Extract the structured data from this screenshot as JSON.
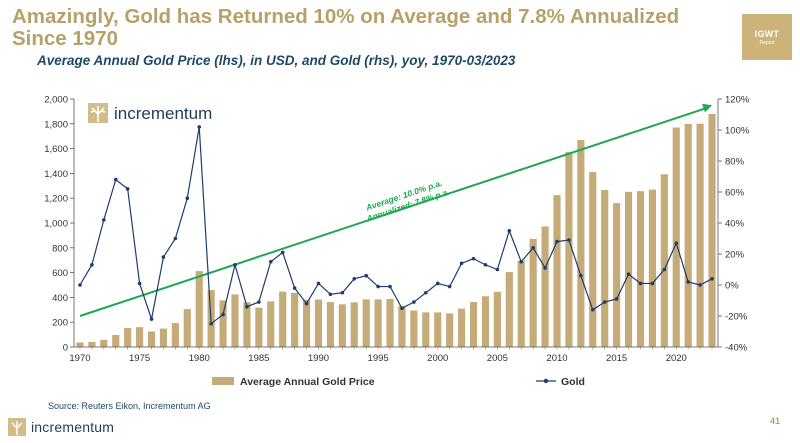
{
  "page": {
    "title": "Amazingly, Gold has Returned 10% on Average and 7.8% Annualized Since 1970",
    "subtitle": "Average Annual Gold Price (lhs), in USD, and Gold (rhs), yoy, 1970-03/2023",
    "badge_line1": "IGWT",
    "badge_line2": "Report",
    "chart_logo_text": "incrementum",
    "source": "Source: Reuters Eikon, Incrementum AG",
    "footer_logo_text": "incrementum",
    "page_number": "41",
    "annotation_line1": "Average: 10.0% p.a.",
    "annotation_line2": "Annualized: 7.8% p.a."
  },
  "colors": {
    "gold": "#c4ab78",
    "line": "#1f3d6e",
    "trend": "#1ea850",
    "title": "#b8a06a",
    "navy": "#1f4a66"
  },
  "chart_data": {
    "type": "bar+line",
    "title": "Average Annual Gold Price (lhs), in USD, and Gold (rhs), yoy, 1970-03/2023",
    "x": [
      1970,
      1971,
      1972,
      1973,
      1974,
      1975,
      1976,
      1977,
      1978,
      1979,
      1980,
      1981,
      1982,
      1983,
      1984,
      1985,
      1986,
      1987,
      1988,
      1989,
      1990,
      1991,
      1992,
      1993,
      1994,
      1995,
      1996,
      1997,
      1998,
      1999,
      2000,
      2001,
      2002,
      2003,
      2004,
      2005,
      2006,
      2007,
      2008,
      2009,
      2010,
      2011,
      2012,
      2013,
      2014,
      2015,
      2016,
      2017,
      2018,
      2019,
      2020,
      2021,
      2022,
      2023
    ],
    "x_tick_labels": [
      "1970",
      "1975",
      "1980",
      "1985",
      "1990",
      "1995",
      "2000",
      "2005",
      "2010",
      "2015",
      "2020"
    ],
    "series": [
      {
        "name": "Average Annual Gold Price",
        "type": "bar",
        "axis": "left",
        "values": [
          36,
          41,
          58,
          97,
          154,
          160,
          125,
          148,
          193,
          306,
          612,
          460,
          376,
          424,
          361,
          317,
          368,
          447,
          437,
          381,
          383,
          362,
          344,
          360,
          384,
          384,
          388,
          331,
          294,
          279,
          279,
          271,
          310,
          363,
          409,
          445,
          604,
          696,
          872,
          972,
          1225,
          1572,
          1669,
          1411,
          1266,
          1160,
          1251,
          1257,
          1269,
          1393,
          1770,
          1799,
          1801,
          1880
        ]
      },
      {
        "name": "Gold",
        "type": "line",
        "axis": "right",
        "values": [
          0,
          13,
          42,
          68,
          62,
          1,
          -22,
          18,
          30,
          56,
          102,
          -25,
          -19,
          13,
          -14,
          -11,
          15,
          21,
          -2,
          -12,
          1,
          -6,
          -5,
          4,
          6,
          -1,
          -1,
          -15,
          -11,
          -5,
          1,
          -1,
          14,
          17,
          13,
          10,
          35,
          15,
          24,
          11,
          28,
          29,
          6,
          -16,
          -11,
          -9,
          7,
          1,
          1,
          10,
          27,
          2,
          0,
          4
        ]
      }
    ],
    "y_left": {
      "label": "",
      "range": [
        0,
        2000
      ],
      "ticks": [
        0,
        200,
        400,
        600,
        800,
        1000,
        1200,
        1400,
        1600,
        1800,
        2000
      ],
      "tick_labels": [
        "0",
        "200",
        "400",
        "600",
        "800",
        "1,000",
        "1,200",
        "1,400",
        "1,600",
        "1,800",
        "2,000"
      ]
    },
    "y_right": {
      "label": "",
      "range": [
        -40,
        120
      ],
      "ticks": [
        -40,
        -20,
        0,
        20,
        40,
        60,
        80,
        100,
        120
      ],
      "tick_labels": [
        "-40%",
        "-20%",
        "0%",
        "20%",
        "40%",
        "60%",
        "80%",
        "100%",
        "120%"
      ]
    },
    "trendline": {
      "from": [
        1970,
        250
      ],
      "to": [
        2023,
        1950
      ],
      "axis": "left"
    },
    "legend": {
      "position": "bottom",
      "entries": [
        "Average Annual Gold Price",
        "Gold"
      ]
    },
    "grid": false
  }
}
